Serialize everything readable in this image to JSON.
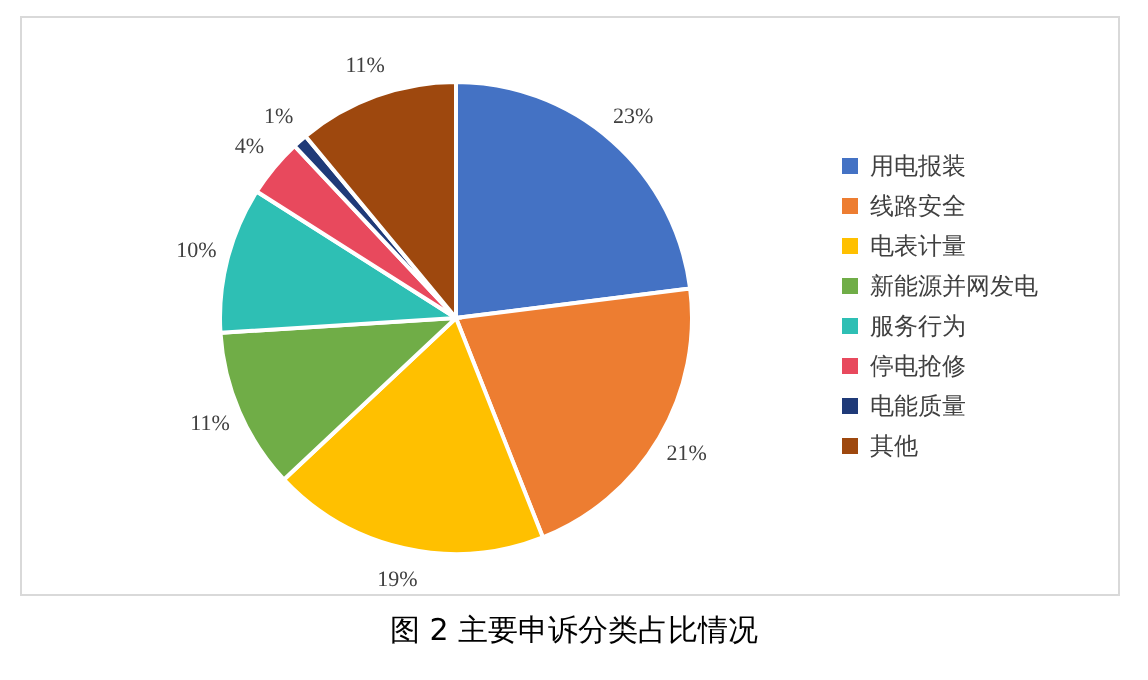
{
  "chart_data": {
    "type": "pie",
    "title": "图 2 主要申诉分类占比情况",
    "categories": [
      "用电报装",
      "线路安全",
      "电表计量",
      "新能源并网发电",
      "服务行为",
      "停电抢修",
      "电能质量",
      "其他"
    ],
    "values": [
      23,
      21,
      19,
      11,
      10,
      4,
      1,
      11
    ],
    "value_labels": [
      "23%",
      "21%",
      "19%",
      "11%",
      "10%",
      "4%",
      "1%",
      "11%"
    ],
    "colors": [
      "#4472c4",
      "#ed7d31",
      "#ffc000",
      "#70ad47",
      "#2ebfb4",
      "#e8495d",
      "#1f3a78",
      "#9e480e"
    ],
    "legend": "right"
  }
}
